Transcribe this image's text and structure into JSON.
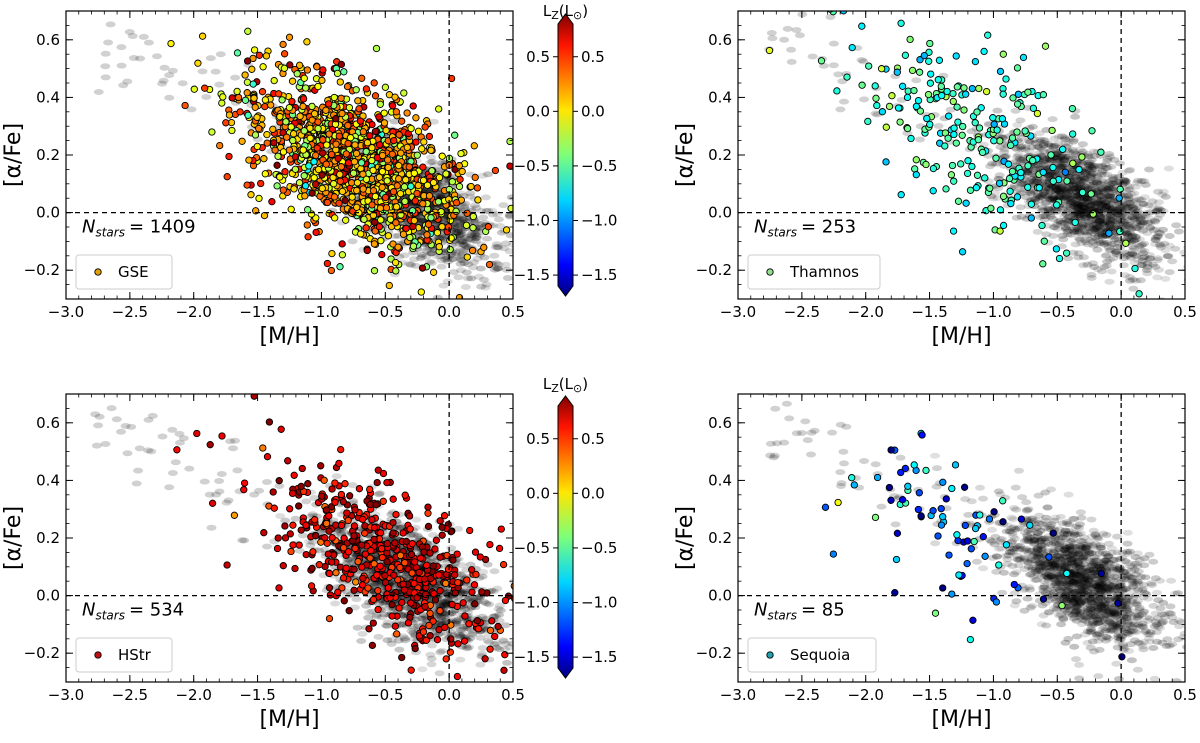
{
  "chart_data": [
    {
      "type": "scatter",
      "panel": "top-left",
      "xlabel": "[M/H]",
      "ylabel": "[α/Fe]",
      "xlim": [
        -3.0,
        0.5
      ],
      "ylim": [
        -0.3,
        0.7
      ],
      "xticks": [
        -3.0,
        -2.5,
        -2.0,
        -1.5,
        -1.0,
        -0.5,
        0.0,
        0.5
      ],
      "xtick_labels": [
        "−3.0",
        "−2.5",
        "−2.0",
        "−1.5",
        "−1.0",
        "−0.5",
        "0.0",
        "0.5"
      ],
      "yticks": [
        -0.2,
        0.0,
        0.2,
        0.4,
        0.6
      ],
      "ytick_labels": [
        "−0.2",
        "0.0",
        "0.2",
        "0.4",
        "0.6"
      ],
      "legend": "GSE",
      "legend_color": "#e0a000",
      "legend_position": "bottom-left",
      "n_stars": 1409,
      "n_stars_label": "N",
      "n_stars_subscript": "stars",
      "n_stars_value_text": "= 1409",
      "reference_lines": {
        "x": 0.0,
        "y": 0.0
      },
      "cloud": {
        "center_x": -0.75,
        "center_y": 0.18,
        "spread_x": 0.42,
        "spread_y": 0.13,
        "slope": -0.18
      },
      "lz_mean": 0.05,
      "lz_spread": 0.3
    },
    {
      "type": "scatter",
      "panel": "top-right",
      "xlabel": "[M/H]",
      "ylabel": "[α/Fe]",
      "xlim": [
        -3.0,
        0.5
      ],
      "ylim": [
        -0.3,
        0.7
      ],
      "xticks": [
        -3.0,
        -2.5,
        -2.0,
        -1.5,
        -1.0,
        -0.5,
        0.0,
        0.5
      ],
      "xtick_labels": [
        "−3.0",
        "−2.5",
        "−2.0",
        "−1.5",
        "−1.0",
        "−0.5",
        "0.0",
        "0.5"
      ],
      "yticks": [
        -0.2,
        0.0,
        0.2,
        0.4,
        0.6
      ],
      "ytick_labels": [
        "−0.2",
        "0.0",
        "0.2",
        "0.4",
        "0.6"
      ],
      "legend": "Thamnos",
      "legend_color": "#90e090",
      "legend_position": "bottom-left",
      "n_stars": 253,
      "n_stars_label": "N",
      "n_stars_subscript": "stars",
      "n_stars_value_text": "= 253",
      "reference_lines": {
        "x": 0.0,
        "y": 0.0
      },
      "cloud": {
        "center_x": -1.1,
        "center_y": 0.25,
        "spread_x": 0.5,
        "spread_y": 0.15,
        "slope": -0.22
      },
      "lz_mean": -0.55,
      "lz_spread": 0.15
    },
    {
      "type": "scatter",
      "panel": "bottom-left",
      "xlabel": "[M/H]",
      "ylabel": "[α/Fe]",
      "xlim": [
        -3.0,
        0.5
      ],
      "ylim": [
        -0.3,
        0.7
      ],
      "xticks": [
        -3.0,
        -2.5,
        -2.0,
        -1.5,
        -1.0,
        -0.5,
        0.0,
        0.5
      ],
      "xtick_labels": [
        "−3.0",
        "−2.5",
        "−2.0",
        "−1.5",
        "−1.0",
        "−0.5",
        "0.0",
        "0.5"
      ],
      "yticks": [
        -0.2,
        0.0,
        0.2,
        0.4,
        0.6
      ],
      "ytick_labels": [
        "−0.2",
        "0.0",
        "0.2",
        "0.4",
        "0.6"
      ],
      "legend": "HStr",
      "legend_color": "#c01010",
      "legend_position": "bottom-left",
      "n_stars": 534,
      "n_stars_label": "N",
      "n_stars_subscript": "stars",
      "n_stars_value_text": "= 534",
      "reference_lines": {
        "x": 0.0,
        "y": 0.0
      },
      "cloud": {
        "center_x": -0.55,
        "center_y": 0.14,
        "spread_x": 0.45,
        "spread_y": 0.12,
        "slope": -0.2
      },
      "lz_mean": 0.55,
      "lz_spread": 0.15
    },
    {
      "type": "scatter",
      "panel": "bottom-right",
      "xlabel": "[M/H]",
      "ylabel": "[α/Fe]",
      "xlim": [
        -3.0,
        0.5
      ],
      "ylim": [
        -0.3,
        0.7
      ],
      "xticks": [
        -3.0,
        -2.5,
        -2.0,
        -1.5,
        -1.0,
        -0.5,
        0.0,
        0.5
      ],
      "xtick_labels": [
        "−3.0",
        "−2.5",
        "−2.0",
        "−1.5",
        "−1.0",
        "−0.5",
        "0.0",
        "0.5"
      ],
      "yticks": [
        -0.2,
        0.0,
        0.2,
        0.4,
        0.6
      ],
      "ytick_labels": [
        "−0.2",
        "0.0",
        "0.2",
        "0.4",
        "0.6"
      ],
      "legend": "Sequoia",
      "legend_color": "#20a0b0",
      "legend_position": "bottom-left",
      "n_stars": 85,
      "n_stars_label": "N",
      "n_stars_subscript": "stars",
      "n_stars_value_text": "= 85",
      "reference_lines": {
        "x": 0.0,
        "y": 0.0
      },
      "cloud": {
        "center_x": -1.2,
        "center_y": 0.22,
        "spread_x": 0.45,
        "spread_y": 0.14,
        "slope": -0.2
      },
      "lz_mean": -1.0,
      "lz_spread": 0.4
    }
  ],
  "colorbars": [
    {
      "label": "L",
      "label_subscript": "Z",
      "label_unit": "(L",
      "label_unit_subscript": "⊙",
      "label_close": ")",
      "range": [
        -1.6,
        0.8
      ],
      "ticks": [
        0.5,
        0.0,
        -0.5,
        -1.0,
        -1.5
      ],
      "tick_labels": [
        "0.5",
        "0.0",
        "−0.5",
        "−1.0",
        "−1.5"
      ],
      "colormap": "jet",
      "extend": "both"
    },
    {
      "label": "L",
      "label_subscript": "Z",
      "label_unit": "(L",
      "label_unit_subscript": "⊙",
      "label_close": ")",
      "range": [
        -1.6,
        0.8
      ],
      "ticks": [
        0.5,
        0.0,
        -0.5,
        -1.0,
        -1.5
      ],
      "tick_labels": [
        "0.5",
        "0.0",
        "−0.5",
        "−1.0",
        "−1.5"
      ],
      "colormap": "jet",
      "extend": "both"
    }
  ],
  "background_density": {
    "description_value": "hexbin",
    "center_x": -0.3,
    "center_y": 0.05,
    "color": "#000000"
  }
}
